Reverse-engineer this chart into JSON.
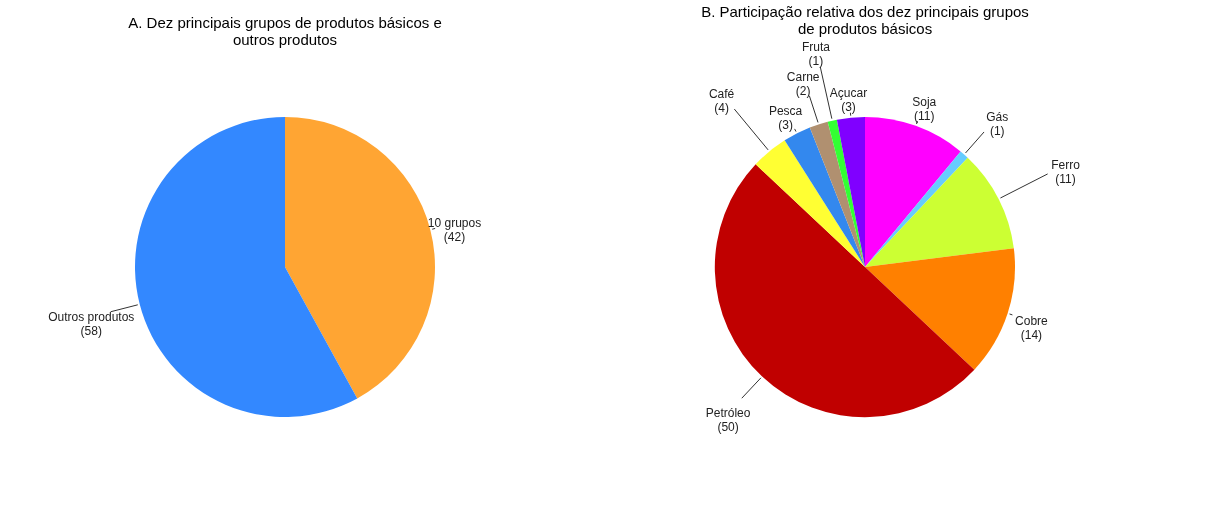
{
  "chart_data": [
    {
      "type": "pie",
      "title": "A. Dez principais grupos de produtos básicos e outros produtos",
      "categories": [
        "10 grupos",
        "Outros produtos"
      ],
      "values": [
        42,
        58
      ],
      "value_labels": [
        "(42)",
        "(58)"
      ],
      "colors": [
        "#ffa533",
        "#3388ff"
      ]
    },
    {
      "type": "pie",
      "title": "B. Participação relativa dos dez principais grupos de produtos básicos",
      "categories": [
        "Soja",
        "Gás",
        "Ferro",
        "Cobre",
        "Petróleo",
        "Café",
        "Pesca",
        "Carne",
        "Fruta",
        "Açucar"
      ],
      "values": [
        11,
        1,
        11,
        14,
        50,
        4,
        3,
        2,
        1,
        3
      ],
      "value_labels": [
        "(11)",
        "(1)",
        "(11)",
        "(14)",
        "(50)",
        "(4)",
        "(3)",
        "(2)",
        "(1)",
        "(3)"
      ],
      "colors": [
        "#ff00ff",
        "#66ccff",
        "#ccff33",
        "#ff8000",
        "#c00000",
        "#ffff33",
        "#3388ee",
        "#b09070",
        "#33ff33",
        "#8000ff"
      ]
    }
  ]
}
